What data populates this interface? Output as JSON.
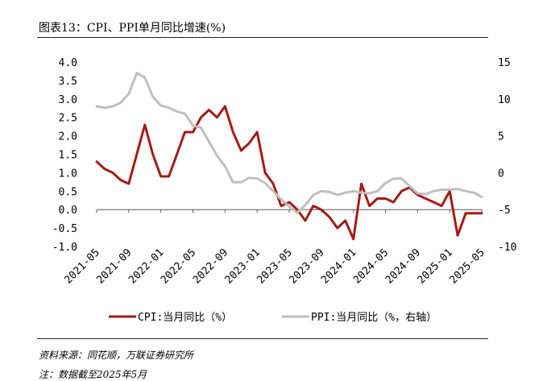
{
  "header": {
    "title": "图表13：CPI、PPI单月同比增速(%)"
  },
  "footer": {
    "source": "资料来源：同花顺，万联证券研究所",
    "note": "注：数据截至2025年5月"
  },
  "colors": {
    "cpi": "#a51b16",
    "ppi": "#bfbfbf",
    "axis": "#595959"
  },
  "chart_data": {
    "type": "line",
    "title": "",
    "x_tick_labels": [
      "2021-05",
      "2021-09",
      "2022-01",
      "2022-05",
      "2022-09",
      "2023-01",
      "2023-05",
      "2023-09",
      "2024-01",
      "2024-05",
      "2024-09",
      "2025-01",
      "2025-05"
    ],
    "x": [
      "2021-05",
      "2021-06",
      "2021-07",
      "2021-08",
      "2021-09",
      "2021-10",
      "2021-11",
      "2021-12",
      "2022-01",
      "2022-02",
      "2022-03",
      "2022-04",
      "2022-05",
      "2022-06",
      "2022-07",
      "2022-08",
      "2022-09",
      "2022-10",
      "2022-11",
      "2022-12",
      "2023-01",
      "2023-02",
      "2023-03",
      "2023-04",
      "2023-05",
      "2023-06",
      "2023-07",
      "2023-08",
      "2023-09",
      "2023-10",
      "2023-11",
      "2023-12",
      "2024-01",
      "2024-02",
      "2024-03",
      "2024-04",
      "2024-05",
      "2024-06",
      "2024-07",
      "2024-08",
      "2024-09",
      "2024-10",
      "2024-11",
      "2024-12",
      "2025-01",
      "2025-02",
      "2025-03",
      "2025-04",
      "2025-05"
    ],
    "left_axis": {
      "ylim": [
        -1.0,
        4.0
      ],
      "ticks": [
        "4.0",
        "3.5",
        "3.0",
        "2.5",
        "2.0",
        "1.5",
        "1.0",
        "0.5",
        "0.0",
        "-0.5",
        "-1.0"
      ]
    },
    "right_axis": {
      "ylim": [
        -10,
        15
      ],
      "ticks": [
        "15",
        "10",
        "5",
        "0",
        "-5",
        "-10"
      ]
    },
    "series": [
      {
        "name": "CPI:当月同比（%）",
        "axis": "left",
        "values": [
          1.3,
          1.1,
          1.0,
          0.8,
          0.7,
          1.5,
          2.3,
          1.5,
          0.9,
          0.9,
          1.5,
          2.1,
          2.1,
          2.5,
          2.7,
          2.5,
          2.8,
          2.1,
          1.6,
          1.8,
          2.1,
          1.0,
          0.7,
          0.1,
          0.2,
          0.0,
          -0.3,
          0.1,
          0.0,
          -0.2,
          -0.5,
          -0.3,
          -0.8,
          0.7,
          0.1,
          0.3,
          0.3,
          0.2,
          0.5,
          0.6,
          0.4,
          0.3,
          0.2,
          0.1,
          0.5,
          -0.7,
          -0.1,
          -0.1,
          -0.1
        ]
      },
      {
        "name": "PPI:当月同比（%，右轴）",
        "axis": "right",
        "values": [
          9.0,
          8.8,
          9.0,
          9.5,
          10.7,
          13.5,
          12.9,
          10.3,
          9.1,
          8.8,
          8.3,
          8.0,
          6.4,
          6.1,
          4.2,
          2.3,
          0.9,
          -1.3,
          -1.3,
          -0.7,
          -0.8,
          -1.4,
          -2.5,
          -3.6,
          -4.6,
          -5.4,
          -4.4,
          -3.0,
          -2.5,
          -2.6,
          -3.0,
          -2.7,
          -2.5,
          -2.7,
          -2.8,
          -2.5,
          -1.4,
          -0.8,
          -0.8,
          -1.8,
          -2.8,
          -2.9,
          -2.5,
          -2.3,
          -2.3,
          -2.2,
          -2.5,
          -2.7,
          -3.3
        ]
      }
    ],
    "grid": false,
    "legend_position": "bottom"
  }
}
